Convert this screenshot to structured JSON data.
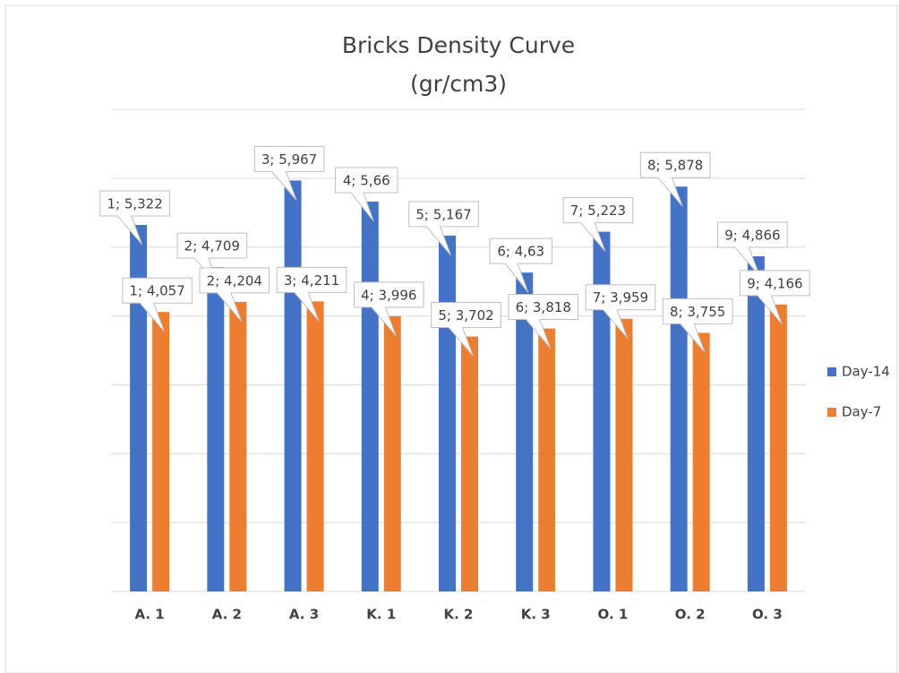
{
  "chart_data": {
    "type": "bar",
    "title": "Bricks Density Curve",
    "subtitle": "(gr/cm3)",
    "categories": [
      "A. 1",
      "A. 2",
      "A. 3",
      "K. 1",
      "K. 2",
      "K. 3",
      "O. 1",
      "O. 2",
      "O. 3"
    ],
    "series": [
      {
        "name": "Day-14",
        "color": "#4472c4",
        "values": [
          5.322,
          4.709,
          5.967,
          5.66,
          5.167,
          4.63,
          5.223,
          5.878,
          4.866
        ],
        "value_labels": [
          "1; 5,322",
          "2; 4,709",
          "3; 5,967",
          "4; 5,66",
          "5; 5,167",
          "6; 4,63",
          "7; 5,223",
          "8; 5,878",
          "9; 4,866"
        ]
      },
      {
        "name": "Day-7",
        "color": "#ed7d31",
        "values": [
          4.057,
          4.204,
          4.211,
          3.996,
          3.702,
          3.818,
          3.959,
          3.755,
          4.166
        ],
        "value_labels": [
          "1; 4,057",
          "2; 4,204",
          "3; 4,211",
          "4; 3,996",
          "5; 3,702",
          "6; 3,818",
          "7; 3,959",
          "8; 3,755",
          "9; 4,166"
        ]
      }
    ],
    "ylim": [
      0,
      7
    ],
    "yticks": [
      0,
      1,
      2,
      3,
      4,
      5,
      6,
      7
    ],
    "grid": true,
    "legend": "right"
  }
}
